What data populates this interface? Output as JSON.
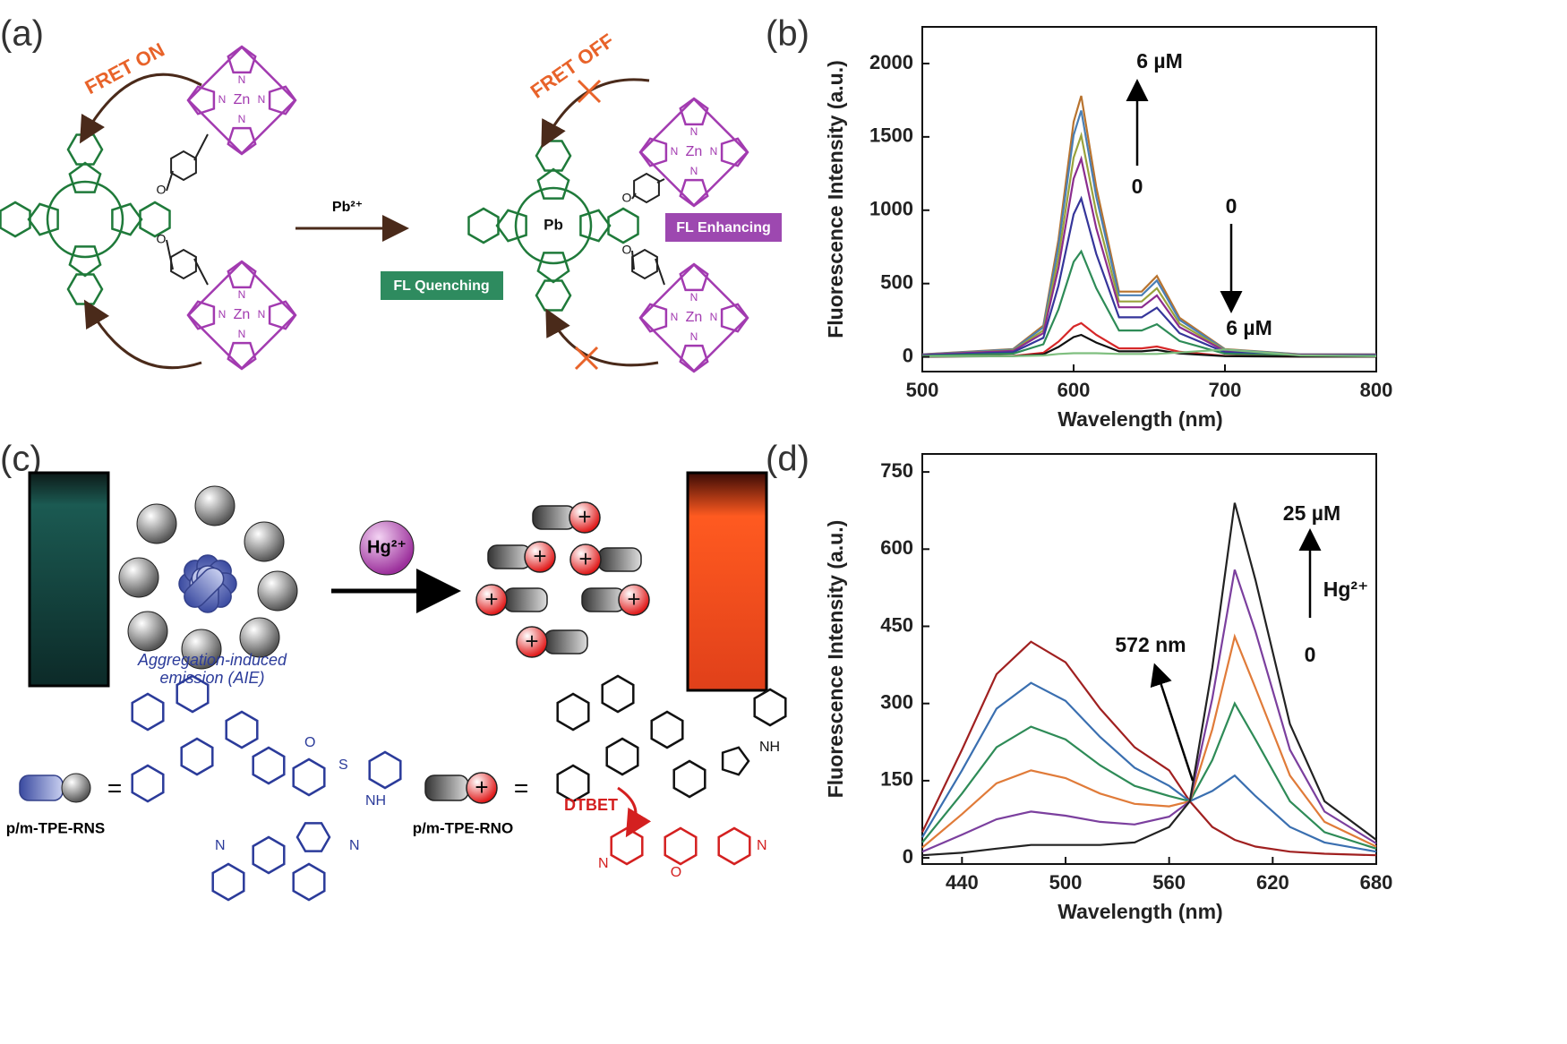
{
  "panel_labels": [
    "(a)",
    "(b)",
    "(c)",
    "(d)"
  ],
  "panel_a": {
    "fret_on": "FRET ON",
    "fret_off": "FRET OFF",
    "reagent": "Pb²⁺",
    "fl_quenching": "FL Quenching",
    "fl_enhancing": "FL Enhancing",
    "metal_zn": "Zn",
    "metal_pb": "Pb",
    "oxygen": "O",
    "nitrogen": "N"
  },
  "panel_c": {
    "reagent": "Hg²⁺",
    "aie": [
      "Aggregation-induced",
      "emission (AIE)"
    ],
    "equals": "=",
    "probe_rns": "p/m-TPE-RNS",
    "probe_rno": "p/m-TPE-RNO",
    "dtbet": "DTBET",
    "plus": "+",
    "oxygen": "O",
    "sulfur": "S",
    "nh": "NH",
    "nitrogen": "N"
  },
  "chart_data": [
    {
      "type": "line",
      "xlabel": "Wavelength (nm)",
      "ylabel": "Fluorescence Intensity (a.u.)",
      "x": [
        500,
        560,
        580,
        590,
        600,
        605,
        615,
        630,
        645,
        655,
        670,
        700,
        750,
        800
      ],
      "xlim": [
        500,
        800
      ],
      "xticks": [
        500,
        600,
        700,
        800
      ],
      "ylim": [
        -100,
        2250
      ],
      "yticks": [
        0,
        500,
        1000,
        1500,
        2000
      ],
      "annotations": [
        "6 µM",
        "0",
        "0",
        "6 µM"
      ],
      "series": [
        {
          "color": "#b8732e",
          "values": [
            18,
            53,
            214,
            801,
            1602,
            1780,
            1157,
            445,
            445,
            552,
            267,
            53,
            18,
            18
          ]
        },
        {
          "color": "#4a7fb5",
          "values": [
            17,
            50,
            202,
            756,
            1512,
            1680,
            1092,
            420,
            420,
            521,
            252,
            50,
            17,
            17
          ]
        },
        {
          "color": "#9aa23c",
          "values": [
            15,
            45,
            181,
            680,
            1359,
            1510,
            982,
            378,
            378,
            468,
            227,
            45,
            15,
            15
          ]
        },
        {
          "color": "#8b2d8e",
          "values": [
            14,
            41,
            162,
            608,
            1215,
            1350,
            878,
            338,
            338,
            419,
            203,
            41,
            14,
            14
          ]
        },
        {
          "color": "#35359a",
          "values": [
            11,
            32,
            130,
            486,
            972,
            1080,
            702,
            270,
            270,
            335,
            162,
            32,
            11,
            11
          ]
        },
        {
          "color": "#2e8b57",
          "values": [
            7,
            22,
            86,
            324,
            648,
            720,
            468,
            180,
            180,
            223,
            108,
            22,
            7,
            7
          ]
        },
        {
          "color": "#d62728",
          "values": [
            2,
            7,
            28,
            104,
            207,
            230,
            150,
            58,
            58,
            71,
            35,
            7,
            2,
            2
          ]
        },
        {
          "color": "#111111",
          "values": [
            2,
            5,
            18,
            68,
            135,
            150,
            98,
            38,
            38,
            47,
            23,
            5,
            2,
            2
          ]
        },
        {
          "color": "#7fbf7f",
          "values": [
            5,
            5,
            10,
            20,
            25,
            25,
            25,
            20,
            20,
            20,
            30,
            50,
            10,
            5
          ]
        }
      ]
    },
    {
      "type": "line",
      "xlabel": "Wavelength (nm)",
      "ylabel": "Fluorescence Intensity (a.u.)",
      "x": [
        417,
        440,
        460,
        480,
        500,
        520,
        540,
        560,
        572,
        585,
        598,
        610,
        630,
        650,
        680
      ],
      "xlim": [
        417,
        680
      ],
      "xticks": [
        440,
        500,
        560,
        620,
        680
      ],
      "ylim": [
        -12,
        785
      ],
      "yticks": [
        0,
        150,
        300,
        450,
        600,
        750
      ],
      "annotations": [
        "25 µM",
        "Hg²⁺",
        "0",
        "572 nm"
      ],
      "series": [
        {
          "color": "#a02020",
          "values": [
            50,
            210,
            357,
            420,
            380,
            290,
            215,
            170,
            110,
            60,
            35,
            22,
            12,
            8,
            5
          ]
        },
        {
          "color": "#3a6fb0",
          "values": [
            40,
            170,
            290,
            340,
            305,
            235,
            175,
            140,
            110,
            130,
            160,
            120,
            60,
            30,
            12
          ]
        },
        {
          "color": "#2e8b57",
          "values": [
            30,
            125,
            215,
            255,
            230,
            180,
            140,
            120,
            110,
            190,
            300,
            230,
            110,
            50,
            18
          ]
        },
        {
          "color": "#e07b39",
          "values": [
            20,
            85,
            145,
            170,
            155,
            125,
            105,
            100,
            110,
            250,
            430,
            330,
            160,
            70,
            22
          ]
        },
        {
          "color": "#7b3f9e",
          "values": [
            12,
            45,
            75,
            90,
            82,
            70,
            65,
            80,
            110,
            310,
            560,
            440,
            210,
            90,
            28
          ]
        },
        {
          "color": "#222222",
          "values": [
            5,
            10,
            18,
            25,
            25,
            25,
            30,
            60,
            110,
            370,
            690,
            540,
            260,
            110,
            35
          ]
        }
      ]
    }
  ]
}
